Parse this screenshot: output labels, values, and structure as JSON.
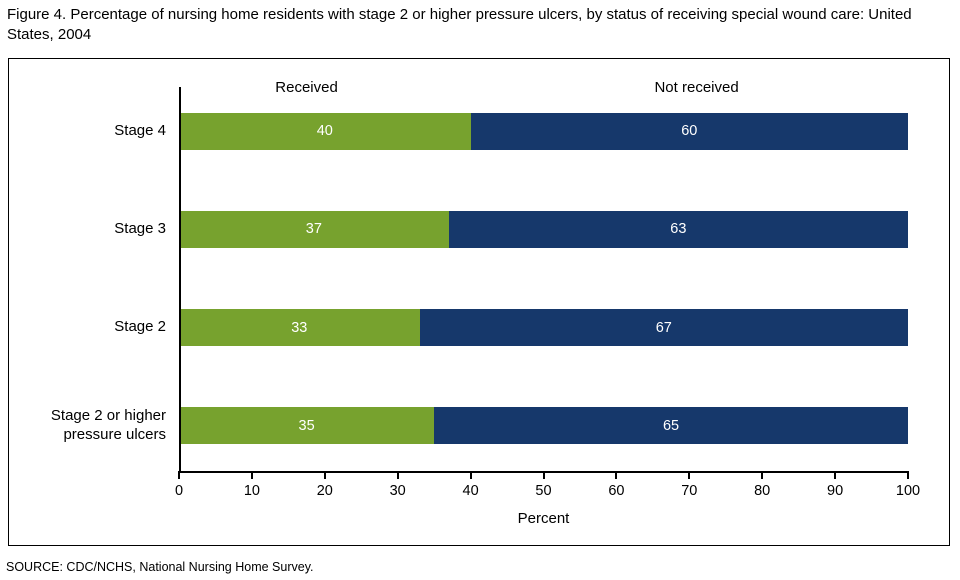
{
  "title": "Figure 4.  Percentage of nursing home residents with stage 2 or higher pressure ulcers, by status of receiving special wound care: United States, 2004",
  "source": "SOURCE: CDC/NCHS, National Nursing Home Survey.",
  "chart_data": {
    "type": "bar",
    "orientation": "horizontal",
    "stacked": true,
    "title": "Percentage of nursing home residents with stage 2 or higher pressure ulcers, by status of receiving special wound care: United States, 2004",
    "categories": [
      "Stage 4",
      "Stage 3",
      "Stage 2",
      "Stage 2 or higher pressure ulcers"
    ],
    "series": [
      {
        "name": "Received",
        "color": "#77A22E",
        "values": [
          40,
          37,
          33,
          35
        ]
      },
      {
        "name": "Not received",
        "color": "#16386B",
        "values": [
          60,
          63,
          67,
          65
        ]
      }
    ],
    "xlabel": "Percent",
    "xlim": [
      0,
      100
    ],
    "xticks": [
      0,
      10,
      20,
      30,
      40,
      50,
      60,
      70,
      80,
      90,
      100
    ],
    "legend_position": "top-inline",
    "grid": false
  }
}
